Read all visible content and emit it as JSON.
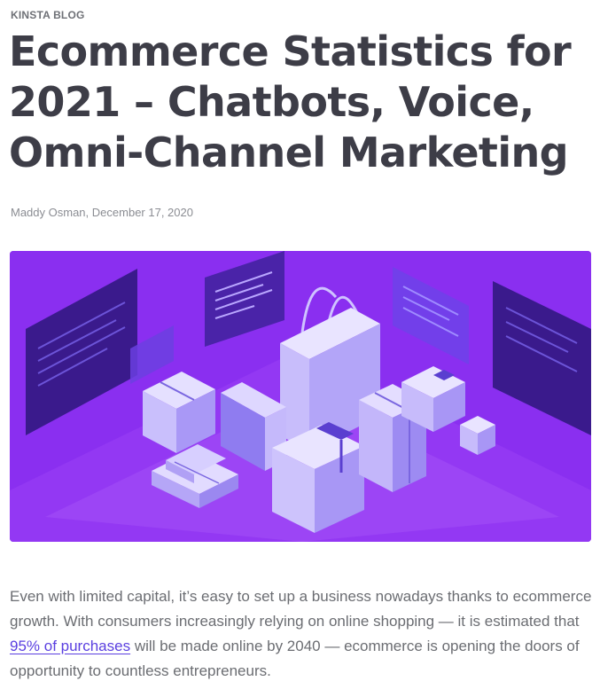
{
  "blog": {
    "kicker": "KINSTA BLOG"
  },
  "article": {
    "title": "Ecommerce Statistics for 2021 – Chatbots, Voice, Omni-Channel Marketing",
    "author": "Maddy Osman",
    "date_sep": ", ",
    "date": "December 17, 2020",
    "intro": {
      "before_link": "Even with limited capital, it’s easy to set up a business nowadays thanks to ecommerce growth. With consumers increasingly relying on online shopping — it is estimated that ",
      "link_text": "95% of purchases",
      "after_link": " will be made online by 2040 — ecommerce is opening the doors of opportunity to countless entrepreneurs."
    }
  },
  "colors": {
    "hero_bg": "#8a2ff0",
    "link": "#5a3fe0",
    "title": "#3d3d47"
  }
}
